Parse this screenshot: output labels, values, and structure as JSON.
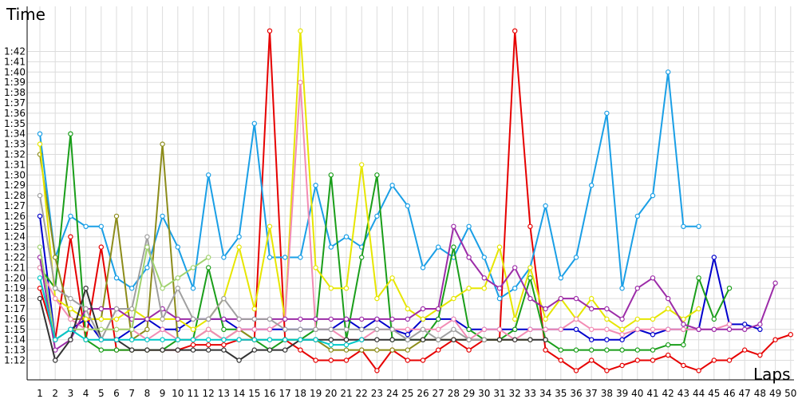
{
  "chart_data": {
    "type": "line",
    "xlabel": "Laps",
    "ylabel": "Time",
    "x_ticks": [
      "1",
      "2",
      "3",
      "4",
      "5",
      "6",
      "7",
      "8",
      "9",
      "10",
      "11",
      "12",
      "13",
      "14",
      "15",
      "16",
      "17",
      "18",
      "19",
      "20",
      "21",
      "22",
      "23",
      "24",
      "25",
      "26",
      "27",
      "28",
      "29",
      "30",
      "31",
      "32",
      "33",
      "34",
      "35",
      "36",
      "37",
      "38",
      "39",
      "40",
      "41",
      "42",
      "43",
      "44",
      "45",
      "46",
      "47",
      "48",
      "49",
      "50"
    ],
    "y_ticks": [
      "1:12",
      "1:13",
      "1:14",
      "1:15",
      "1:16",
      "1:17",
      "1:18",
      "1:19",
      "1:20",
      "1:21",
      "1:22",
      "1:23",
      "1:24",
      "1:25",
      "1:26",
      "1:27",
      "1:28",
      "1:29",
      "1:30",
      "1:31",
      "1:32",
      "1:33",
      "1:34",
      "1:35",
      "1:36",
      "1:37",
      "1:38",
      "1:39",
      "1:40",
      "1:41",
      "1:42"
    ],
    "x_range": [
      1,
      50
    ],
    "y_range_seconds": [
      72,
      102
    ],
    "grid": true,
    "series": [
      {
        "color": "#e60000",
        "values": [
          79,
          74,
          84,
          74,
          83,
          73,
          73,
          73,
          73,
          73,
          73.5,
          73.5,
          73.5,
          74,
          74,
          104,
          74,
          73,
          72,
          72,
          72,
          73,
          71,
          73,
          72,
          72,
          73,
          74,
          73,
          74,
          74,
          104,
          85,
          73,
          72,
          71,
          72,
          71,
          71.5,
          72,
          72,
          72.5,
          71.5,
          71,
          72,
          72,
          73,
          72.5,
          74,
          74.5
        ]
      },
      {
        "color": "#0000cc",
        "values": [
          86,
          74,
          75,
          76,
          74,
          74,
          75,
          76,
          75,
          75,
          76,
          76,
          76,
          75,
          75,
          75,
          75,
          75,
          75,
          75,
          76,
          75,
          76,
          75,
          74.5,
          76,
          76,
          76,
          75,
          75,
          75,
          75,
          75,
          75,
          75,
          75,
          74,
          74,
          74,
          75,
          74.5,
          75,
          75,
          75,
          82,
          75.5,
          75.5,
          75
        ]
      },
      {
        "color": "#1a9fe6",
        "values": [
          94,
          82,
          86,
          85,
          85,
          80,
          79,
          81,
          86,
          83,
          79,
          90,
          82,
          84,
          95,
          82,
          82,
          82,
          89,
          83,
          84,
          83,
          86,
          89,
          87,
          81,
          83,
          82,
          85,
          82,
          78,
          79,
          81,
          87,
          80,
          82,
          89,
          96,
          79,
          86,
          88,
          100,
          85,
          85
        ]
      },
      {
        "color": "#1a9e1a",
        "values": [
          81,
          79,
          94,
          74,
          73,
          73,
          73,
          73,
          73,
          74,
          74,
          81,
          75,
          75,
          74,
          73,
          74,
          74,
          75,
          90,
          74,
          82,
          90,
          74,
          74,
          74,
          76,
          83,
          75,
          74,
          74,
          75,
          80,
          74,
          73,
          73,
          73,
          73,
          73,
          73,
          73,
          73.5,
          73.5,
          80,
          76,
          79
        ]
      },
      {
        "color": "#8c8c1a",
        "values": [
          92,
          82,
          76,
          76,
          76,
          86,
          74,
          75,
          93,
          74,
          74,
          75,
          74,
          75,
          74,
          74,
          74,
          74,
          74,
          73,
          73,
          73,
          73,
          73,
          73,
          74,
          74,
          74,
          74,
          74,
          74,
          74,
          74
        ]
      },
      {
        "color": "#e6e600",
        "values": [
          93,
          78,
          77,
          76,
          76,
          76,
          77,
          76,
          76,
          76,
          75,
          76,
          78,
          83,
          77,
          85,
          76,
          104,
          81,
          79,
          79,
          91,
          78,
          80,
          77,
          76,
          77,
          78,
          79,
          79,
          83,
          76,
          81,
          76,
          78,
          76,
          78,
          76,
          75,
          76,
          76,
          77,
          76,
          77
        ]
      },
      {
        "color": "#f28cb4",
        "values": [
          81,
          78,
          76,
          75,
          75,
          75,
          75,
          74,
          75,
          74,
          74,
          75,
          74,
          75,
          75,
          75,
          76,
          99,
          75,
          75,
          74,
          74,
          75,
          75,
          75,
          75,
          75,
          76,
          74,
          75,
          75,
          74,
          75,
          75,
          75,
          76,
          75,
          75,
          74.5,
          75,
          75,
          75,
          75,
          75,
          75,
          75.5
        ]
      },
      {
        "color": "#9c2ca8",
        "values": [
          82,
          73,
          74,
          77,
          77,
          77,
          76,
          76,
          77,
          76,
          76,
          76,
          76,
          76,
          76,
          76,
          76,
          76,
          76,
          76,
          76,
          76,
          76,
          76,
          76,
          77,
          77,
          85,
          82,
          80,
          79,
          81,
          78,
          77,
          78,
          78,
          77,
          77,
          76,
          79,
          80,
          78,
          75.5,
          75,
          75,
          75,
          75,
          75.5,
          79.5
        ]
      },
      {
        "color": "#333333",
        "values": [
          78,
          72,
          74,
          79,
          74,
          74,
          73,
          73,
          73,
          73,
          73,
          73,
          73,
          72,
          73,
          73,
          73,
          74,
          74,
          74,
          74,
          74,
          74,
          74,
          74,
          74,
          74,
          74,
          74,
          74,
          74,
          74,
          74,
          74
        ]
      },
      {
        "color": "#a0a0a0",
        "values": [
          88,
          79,
          78,
          77,
          74,
          77,
          77,
          84,
          76,
          79,
          76,
          76,
          78,
          76,
          76,
          76,
          75,
          75,
          75,
          75,
          75,
          75,
          75,
          75,
          74,
          75,
          74,
          75,
          74,
          74
        ]
      },
      {
        "color": "#a0d26e",
        "values": [
          83,
          74,
          75,
          75,
          75,
          75,
          75,
          83,
          79,
          80,
          81,
          82
        ]
      },
      {
        "color": "#00c8c8",
        "values": [
          80,
          74,
          75,
          74,
          74,
          74,
          74,
          74,
          74,
          74,
          74,
          74,
          74,
          74,
          74,
          74,
          74,
          74,
          74,
          73.5,
          73.5,
          74
        ]
      }
    ]
  }
}
